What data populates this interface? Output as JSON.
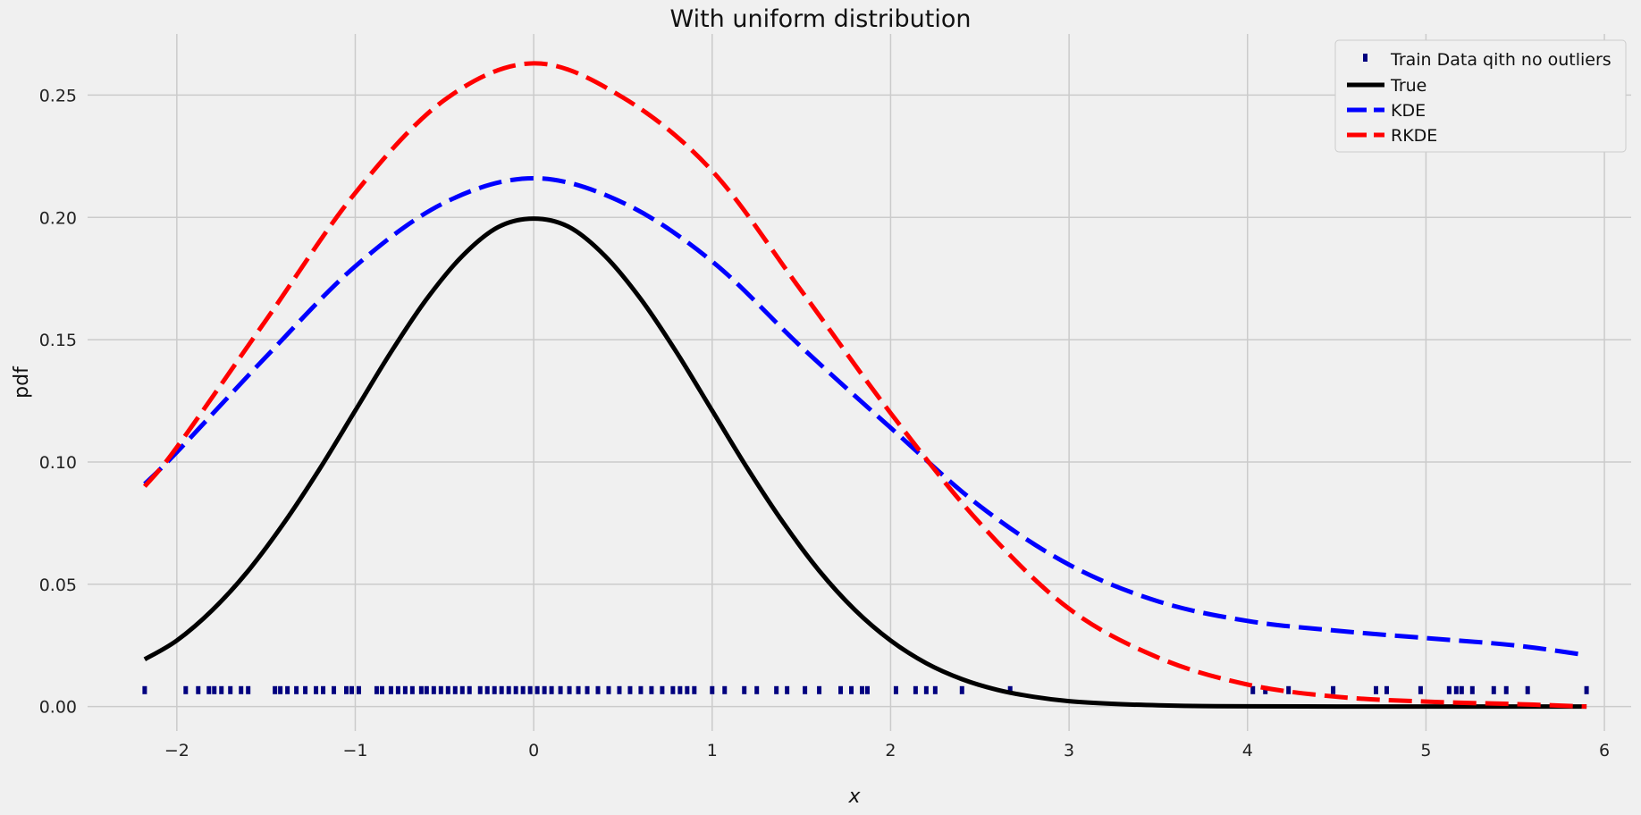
{
  "chart_data": {
    "type": "line",
    "title": "With uniform distribution",
    "xlabel": "x",
    "ylabel": "pdf",
    "xlim": [
      -2.5,
      6.15
    ],
    "ylim": [
      -0.01,
      0.275
    ],
    "grid": true,
    "legend_position": "top-right",
    "x_ticks": [
      -2,
      -1,
      0,
      1,
      2,
      3,
      4,
      5,
      6
    ],
    "x_tick_labels": [
      "−2",
      "−1",
      "0",
      "1",
      "2",
      "3",
      "4",
      "5",
      "6"
    ],
    "y_ticks": [
      0.0,
      0.05,
      0.1,
      0.15,
      0.2,
      0.25
    ],
    "y_tick_labels": [
      "0.00",
      "0.05",
      "0.10",
      "0.15",
      "0.20",
      "0.25"
    ],
    "series": [
      {
        "name": "Train Data qith no outliers",
        "kind": "scatter",
        "color": "#00007f",
        "y_level": 0.0067,
        "x": [
          -2.18,
          -1.95,
          -1.88,
          -1.82,
          -1.79,
          -1.75,
          -1.7,
          -1.64,
          -1.6,
          -1.45,
          -1.42,
          -1.38,
          -1.33,
          -1.28,
          -1.22,
          -1.18,
          -1.12,
          -1.05,
          -1.02,
          -0.98,
          -0.88,
          -0.85,
          -0.8,
          -0.76,
          -0.72,
          -0.68,
          -0.63,
          -0.6,
          -0.56,
          -0.52,
          -0.48,
          -0.44,
          -0.4,
          -0.36,
          -0.3,
          -0.26,
          -0.22,
          -0.18,
          -0.14,
          -0.1,
          -0.06,
          -0.02,
          0.02,
          0.06,
          0.1,
          0.15,
          0.2,
          0.25,
          0.3,
          0.36,
          0.42,
          0.48,
          0.54,
          0.6,
          0.66,
          0.72,
          0.78,
          0.82,
          0.86,
          0.9,
          1.0,
          1.07,
          1.18,
          1.25,
          1.36,
          1.42,
          1.52,
          1.6,
          1.72,
          1.78,
          1.84,
          1.87,
          2.03,
          2.14,
          2.2,
          2.25,
          2.4,
          2.67,
          4.03,
          4.1,
          4.23,
          4.48,
          4.72,
          4.78,
          4.97,
          5.13,
          5.17,
          5.2,
          5.26,
          5.38,
          5.45,
          5.57,
          5.9
        ]
      },
      {
        "name": "True",
        "kind": "line",
        "color": "#000000",
        "dash": "solid",
        "x": [
          -2.18,
          -2.0,
          -1.8,
          -1.6,
          -1.4,
          -1.2,
          -1.0,
          -0.8,
          -0.6,
          -0.4,
          -0.2,
          0.0,
          0.2,
          0.4,
          0.6,
          0.8,
          1.0,
          1.2,
          1.4,
          1.6,
          1.8,
          2.0,
          2.2,
          2.4,
          2.6,
          2.8,
          3.0,
          3.25,
          3.5,
          3.75,
          4.0,
          4.5,
          5.0,
          5.5,
          5.9
        ],
        "y": [
          0.0193,
          0.027,
          0.0395,
          0.0555,
          0.075,
          0.0971,
          0.121,
          0.1449,
          0.1666,
          0.1842,
          0.196,
          0.1995,
          0.196,
          0.1842,
          0.1666,
          0.1449,
          0.121,
          0.0971,
          0.075,
          0.0555,
          0.0395,
          0.027,
          0.0177,
          0.0112,
          0.0068,
          0.004,
          0.0022,
          0.0011,
          0.0005,
          0.0002,
          0.0001,
          0.0,
          0.0,
          0.0,
          0.0
        ]
      },
      {
        "name": "KDE",
        "kind": "line",
        "color": "#0000ff",
        "dash": "dashed",
        "x": [
          -2.18,
          -2.0,
          -1.5,
          -1.0,
          -0.5,
          0.0,
          0.5,
          1.0,
          1.5,
          2.0,
          2.5,
          3.0,
          3.5,
          4.0,
          4.5,
          5.0,
          5.5,
          5.9
        ],
        "y": [
          0.091,
          0.104,
          0.143,
          0.18,
          0.206,
          0.216,
          0.206,
          0.182,
          0.147,
          0.114,
          0.082,
          0.058,
          0.043,
          0.035,
          0.031,
          0.028,
          0.025,
          0.021
        ]
      },
      {
        "name": "RKDE",
        "kind": "line",
        "color": "#ff0000",
        "dash": "dashed",
        "x": [
          -2.18,
          -2.0,
          -1.5,
          -1.0,
          -0.5,
          0.0,
          0.5,
          1.0,
          1.5,
          2.0,
          2.5,
          3.0,
          3.5,
          4.0,
          4.5,
          5.0,
          5.5,
          5.9
        ],
        "y": [
          0.09,
          0.106,
          0.158,
          0.21,
          0.248,
          0.263,
          0.249,
          0.219,
          0.17,
          0.12,
          0.075,
          0.04,
          0.02,
          0.009,
          0.004,
          0.002,
          0.001,
          0.0
        ]
      }
    ]
  }
}
